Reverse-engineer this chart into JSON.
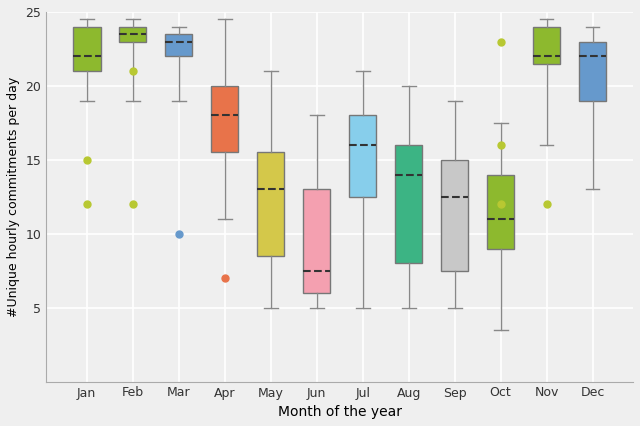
{
  "months": [
    "Jan",
    "Feb",
    "Mar",
    "Apr",
    "May",
    "Jun",
    "Jul",
    "Aug",
    "Sep",
    "Oct",
    "Nov",
    "Dec"
  ],
  "colors": [
    "#8db92e",
    "#8db92e",
    "#6699cc",
    "#e8734a",
    "#d4c84a",
    "#f4a0b0",
    "#87ceeb",
    "#3cb484",
    "#c8c8c8",
    "#8db92e",
    "#8db92e",
    "#6699cc"
  ],
  "box_data": {
    "Jan": {
      "whislo": 19.0,
      "q1": 21.0,
      "med": 22.0,
      "q3": 24.0,
      "whishi": 24.5,
      "fliers": [
        15.0,
        12.0
      ]
    },
    "Feb": {
      "whislo": 19.0,
      "q1": 23.0,
      "med": 23.5,
      "q3": 24.0,
      "whishi": 24.5,
      "fliers": [
        21.0,
        12.0
      ]
    },
    "Mar": {
      "whislo": 19.0,
      "q1": 22.0,
      "med": 23.0,
      "q3": 23.5,
      "whishi": 24.0,
      "fliers": [
        10.0
      ]
    },
    "Apr": {
      "whislo": 11.0,
      "q1": 15.5,
      "med": 18.0,
      "q3": 20.0,
      "whishi": 24.5,
      "fliers": [
        7.0
      ]
    },
    "May": {
      "whislo": 5.0,
      "q1": 8.5,
      "med": 13.0,
      "q3": 15.5,
      "whishi": 21.0,
      "fliers": []
    },
    "Jun": {
      "whislo": 5.0,
      "q1": 6.0,
      "med": 7.5,
      "q3": 13.0,
      "whishi": 18.0,
      "fliers": []
    },
    "Jul": {
      "whislo": 5.0,
      "q1": 12.5,
      "med": 16.0,
      "q3": 18.0,
      "whishi": 21.0,
      "fliers": []
    },
    "Aug": {
      "whislo": 5.0,
      "q1": 8.0,
      "med": 14.0,
      "q3": 16.0,
      "whishi": 20.0,
      "fliers": []
    },
    "Sep": {
      "whislo": 5.0,
      "q1": 7.5,
      "med": 12.5,
      "q3": 15.0,
      "whishi": 19.0,
      "fliers": []
    },
    "Oct": {
      "whislo": 3.5,
      "q1": 9.0,
      "med": 11.0,
      "q3": 14.0,
      "whishi": 17.5,
      "fliers": [
        23.0,
        16.0,
        12.0
      ]
    },
    "Nov": {
      "whislo": 16.0,
      "q1": 21.5,
      "med": 22.0,
      "q3": 24.0,
      "whishi": 24.5,
      "fliers": [
        12.0
      ]
    },
    "Dec": {
      "whislo": 13.0,
      "q1": 19.0,
      "med": 22.0,
      "q3": 23.0,
      "whishi": 24.0,
      "fliers": []
    }
  },
  "ylabel": "#Unique hourly commitments per day",
  "xlabel": "Month of the year",
  "ylim": [
    0,
    25
  ],
  "yticks": [
    5,
    10,
    15,
    20,
    25
  ],
  "figsize": [
    6.4,
    4.26
  ],
  "dpi": 100,
  "bg_color": "#efefef",
  "grid_color": "#ffffff",
  "flier_colors": {
    "Jan": "#b8c832",
    "Feb": "#b8c832",
    "Mar": "#6699cc",
    "Apr": "#e8734a",
    "Oct": "#b8c832",
    "Nov": "#b8c832"
  }
}
